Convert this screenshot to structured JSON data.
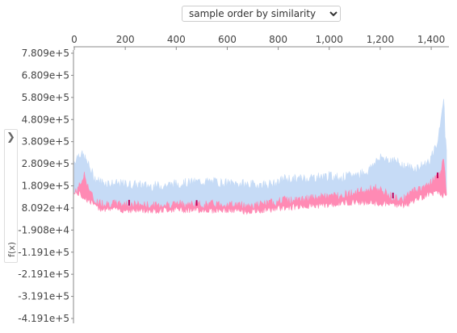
{
  "controls": {
    "order_select": {
      "selected": "sample order by similarity",
      "options": [
        "sample order by similarity"
      ]
    },
    "fx_panel": {
      "label": "f(x)",
      "chevron_icon": "chevron-right-icon"
    }
  },
  "chart_data": {
    "type": "area",
    "xlabel": "",
    "ylabel": "f(x)",
    "xlim": [
      0,
      1460
    ],
    "x_ticks": [
      0,
      200,
      400,
      600,
      800,
      1000,
      1200,
      1400
    ],
    "x_tick_labels": [
      "0",
      "200",
      "400",
      "600",
      "800",
      "1,000",
      "1,200",
      "1,400"
    ],
    "ylim": [
      -419100,
      780900
    ],
    "y_ticks": [
      780900,
      680900,
      580900,
      480900,
      380900,
      280900,
      180900,
      80920,
      -19080,
      -119100,
      -219100,
      -319100,
      -419100
    ],
    "y_tick_labels": [
      "7.809e+5",
      "6.809e+5",
      "5.809e+5",
      "4.809e+5",
      "3.809e+5",
      "2.809e+5",
      "1.809e+5",
      "8.092e+4",
      "-1.908e+4",
      "-1.191e+5",
      "-2.191e+5",
      "-3.191e+5",
      "-4.191e+5"
    ],
    "colors": {
      "upper": "#c6dbf6",
      "lower": "#ff8ab4",
      "dark": "#c0005a"
    },
    "series": [
      {
        "role": "upper band",
        "color": "#c6dbf6",
        "x": [
          0,
          20,
          40,
          60,
          80,
          100,
          150,
          200,
          250,
          300,
          350,
          400,
          450,
          500,
          550,
          600,
          650,
          700,
          750,
          800,
          820,
          860,
          900,
          950,
          1000,
          1050,
          1100,
          1150,
          1180,
          1210,
          1250,
          1300,
          1330,
          1360,
          1390,
          1410,
          1430,
          1440,
          1450,
          1455,
          1460
        ],
        "values": [
          290000,
          330000,
          310000,
          265000,
          215000,
          200000,
          190000,
          188000,
          185000,
          180000,
          182000,
          190000,
          195000,
          200000,
          198000,
          192000,
          190000,
          185000,
          187000,
          190000,
          215000,
          210000,
          215000,
          220000,
          225000,
          218000,
          230000,
          245000,
          290000,
          310000,
          295000,
          270000,
          258000,
          270000,
          290000,
          330000,
          400000,
          520000,
          560000,
          400000,
          350000
        ]
      },
      {
        "role": "lower band",
        "color": "#ff8ab4",
        "x": [
          0,
          20,
          40,
          60,
          80,
          100,
          150,
          200,
          250,
          300,
          350,
          400,
          450,
          500,
          550,
          600,
          650,
          700,
          750,
          800,
          820,
          860,
          900,
          950,
          1000,
          1050,
          1100,
          1150,
          1180,
          1210,
          1250,
          1300,
          1330,
          1360,
          1390,
          1410,
          1430,
          1440,
          1450,
          1455,
          1460
        ],
        "values": [
          145000,
          180000,
          230000,
          160000,
          110000,
          105000,
          100000,
          98000,
          96000,
          92000,
          95000,
          100000,
          98000,
          95000,
          100000,
          97000,
          95000,
          92000,
          100000,
          110000,
          118000,
          115000,
          120000,
          128000,
          135000,
          140000,
          152000,
          160000,
          175000,
          155000,
          130000,
          125000,
          160000,
          170000,
          190000,
          210000,
          225000,
          260000,
          300000,
          215000,
          160000
        ]
      },
      {
        "role": "baseline",
        "color": "#ff8ab4",
        "x": [
          0,
          100,
          200,
          300,
          400,
          500,
          600,
          700,
          800,
          900,
          1000,
          1100,
          1200,
          1300,
          1400,
          1460
        ],
        "values": [
          160000,
          80000,
          72000,
          70000,
          75000,
          72000,
          70000,
          65000,
          80000,
          90000,
          95000,
          110000,
          100000,
          95000,
          150000,
          140000
        ]
      }
    ]
  }
}
